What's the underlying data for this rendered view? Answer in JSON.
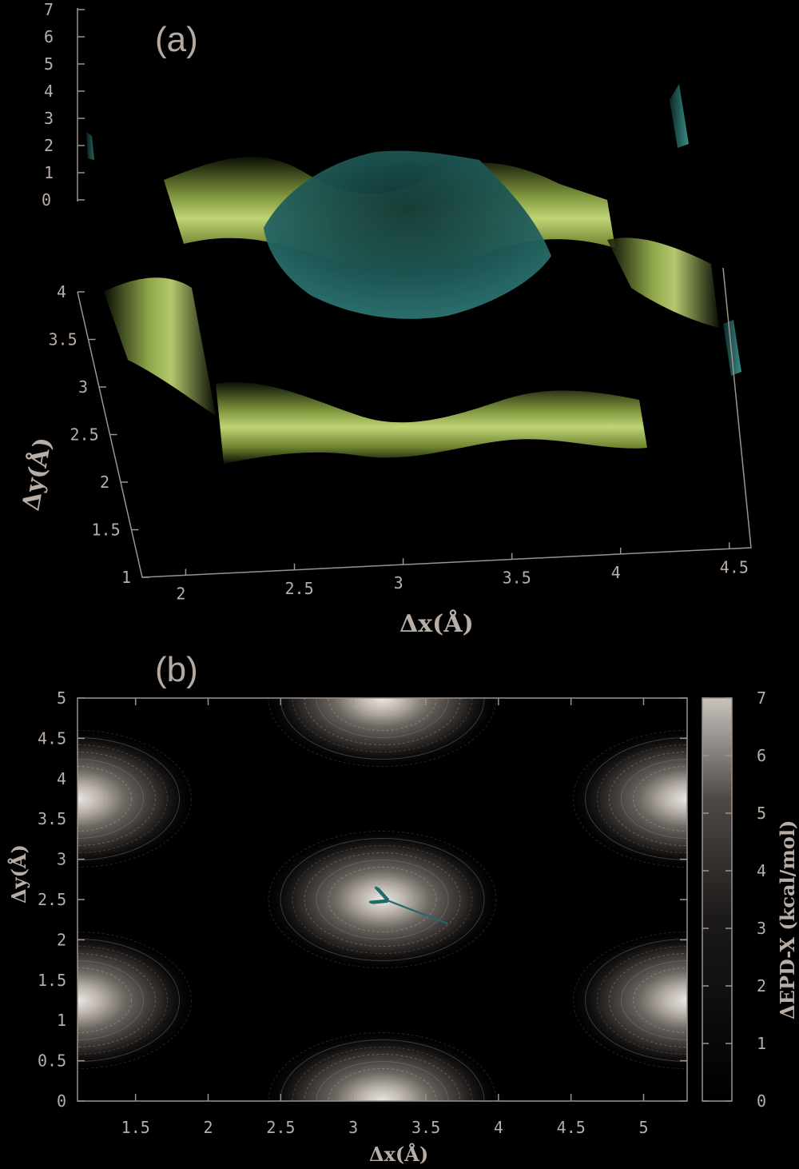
{
  "chart_data": [
    {
      "panel": "(a)",
      "type": "surface3d",
      "xlabel": "Δx(Å)",
      "ylabel": "Δy(Å)",
      "zlabel": "",
      "x_ticks": [
        "2",
        "2.5",
        "3",
        "3.5",
        "4",
        "4.5"
      ],
      "y_ticks": [
        "1",
        "1.5",
        "2",
        "2.5",
        "3",
        "3.5",
        "4"
      ],
      "z_ticks": [
        "0",
        "1",
        "2",
        "3",
        "4",
        "5",
        "6",
        "7"
      ],
      "xlim": [
        1.8,
        4.6
      ],
      "ylim": [
        1.0,
        4.0
      ],
      "zlim": [
        0,
        7
      ],
      "colors": {
        "ridge": "#c8e07a",
        "dome": "#2a6e6c",
        "background": "#000000"
      }
    },
    {
      "panel": "(b)",
      "type": "contour",
      "xlabel": "Δx(Å)",
      "ylabel": "Δy(Å)",
      "colorbar_label": "ΔEPD-X (kcal/mol)",
      "x_ticks": [
        "1.5",
        "2",
        "2.5",
        "3",
        "3.5",
        "4",
        "4.5",
        "5"
      ],
      "y_ticks": [
        "0",
        "0.5",
        "1",
        "1.5",
        "2",
        "2.5",
        "3",
        "3.5",
        "4",
        "4.5",
        "5"
      ],
      "colorbar_ticks": [
        "0",
        "1",
        "2",
        "3",
        "4",
        "5",
        "6",
        "7"
      ],
      "xlim": [
        1.1,
        5.3
      ],
      "ylim": [
        0,
        5
      ],
      "clim": [
        0,
        7
      ],
      "peaks": [
        {
          "x": 3.2,
          "y": 2.5,
          "z": 7
        },
        {
          "x": 3.2,
          "y": 5.0,
          "z": 7
        },
        {
          "x": 3.2,
          "y": 0.0,
          "z": 7
        },
        {
          "x": 1.1,
          "y": 3.75,
          "z": 7
        },
        {
          "x": 1.1,
          "y": 1.25,
          "z": 7
        },
        {
          "x": 5.3,
          "y": 3.75,
          "z": 7
        },
        {
          "x": 5.3,
          "y": 1.25,
          "z": 7
        }
      ],
      "arrow": {
        "from": {
          "x": 3.65,
          "y": 2.2
        },
        "to": {
          "x": 3.22,
          "y": 2.5
        },
        "color": "#1f6b6a"
      }
    }
  ]
}
